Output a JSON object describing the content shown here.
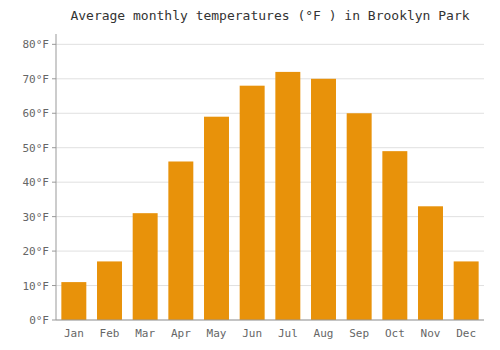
{
  "chart_data": {
    "type": "bar",
    "title": "Average monthly temperatures (°F ) in Brooklyn Park",
    "categories": [
      "Jan",
      "Feb",
      "Mar",
      "Apr",
      "May",
      "Jun",
      "Jul",
      "Aug",
      "Sep",
      "Oct",
      "Nov",
      "Dec"
    ],
    "values": [
      11,
      17,
      31,
      46,
      59,
      68,
      72,
      70,
      60,
      49,
      33,
      17
    ],
    "color": "#E8920A",
    "ylim": [
      0,
      83
    ],
    "yticks": [
      {
        "value": 0,
        "label": "0°F"
      },
      {
        "value": 10,
        "label": "10°F"
      },
      {
        "value": 20,
        "label": "20°F"
      },
      {
        "value": 30,
        "label": "30°F"
      },
      {
        "value": 40,
        "label": "40°F"
      },
      {
        "value": 50,
        "label": "50°F"
      },
      {
        "value": 60,
        "label": "60°F"
      },
      {
        "value": 70,
        "label": "70°F"
      },
      {
        "value": 80,
        "label": "80°F"
      }
    ],
    "grid": true
  }
}
